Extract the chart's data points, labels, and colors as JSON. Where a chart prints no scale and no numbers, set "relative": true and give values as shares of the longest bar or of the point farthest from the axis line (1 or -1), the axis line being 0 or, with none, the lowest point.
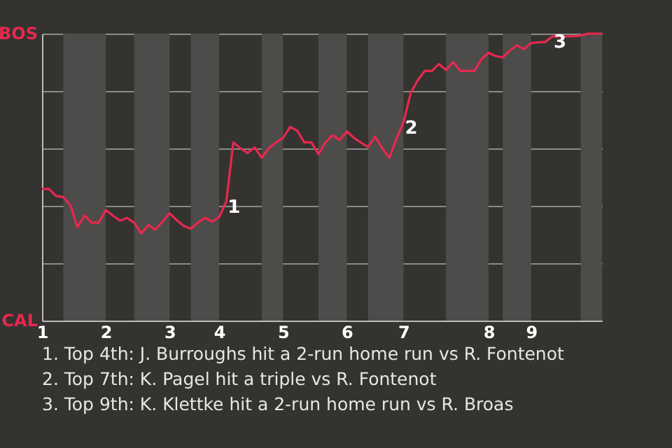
{
  "chart_data": {
    "type": "line",
    "grid": "y",
    "relative": true,
    "marker": "none",
    "line_style": "solid",
    "categories": [
      "1",
      null,
      null,
      null,
      null,
      null,
      null,
      null,
      null,
      "2",
      null,
      null,
      null,
      null,
      null,
      null,
      null,
      null,
      "3",
      null,
      null,
      null,
      null,
      null,
      null,
      "4",
      null,
      null,
      null,
      null,
      null,
      null,
      null,
      null,
      "5",
      null,
      null,
      null,
      null,
      null,
      null,
      null,
      null,
      "6",
      null,
      null,
      null,
      null,
      null,
      null,
      null,
      "7",
      null,
      null,
      null,
      null,
      null,
      null,
      null,
      null,
      null,
      null,
      null,
      "8",
      null,
      null,
      null,
      null,
      null,
      "9",
      null,
      null,
      null,
      null,
      null,
      null,
      null,
      null,
      null,
      null
    ],
    "series": [
      {
        "color": "#e8284f",
        "values": [
          0.459,
          0.459,
          0.434,
          0.431,
          0.402,
          0.325,
          0.366,
          0.341,
          0.341,
          0.385,
          0.366,
          0.348,
          0.358,
          0.341,
          0.304,
          0.333,
          0.317,
          0.345,
          0.374,
          0.35,
          0.33,
          0.32,
          0.341,
          0.358,
          0.345,
          0.361,
          0.415,
          0.621,
          0.6,
          0.584,
          0.603,
          0.567,
          0.6,
          0.621,
          0.636,
          0.675,
          0.662,
          0.621,
          0.621,
          0.58,
          0.621,
          0.646,
          0.629,
          0.659,
          0.637,
          0.62,
          0.605,
          0.641,
          0.6,
          0.567,
          0.633,
          0.691,
          0.792,
          0.837,
          0.87,
          0.87,
          0.894,
          0.873,
          0.901,
          0.87,
          0.87,
          0.87,
          0.911,
          0.933,
          0.922,
          0.917,
          0.941,
          0.959,
          0.946,
          0.967,
          0.969,
          0.971,
          0.99,
          0.99,
          0.99,
          0.991,
          0.993,
          1,
          1,
          1
        ]
      }
    ],
    "annotations": [
      "BOS",
      "CAL",
      {
        "text": "1",
        "y": 0.415
      },
      {
        "text": "2",
        "y": 0.691
      },
      {
        "text": "3",
        "y": 0.99
      },
      "1. Top 4th: J. Burroughs hit a 2-run home run vs R. Fontenot",
      "2. Top 7th: K. Pagel hit a triple vs R. Fontenot",
      "3. Top 9th: K. Klettke hit a 2-run home run vs R. Broas"
    ]
  }
}
